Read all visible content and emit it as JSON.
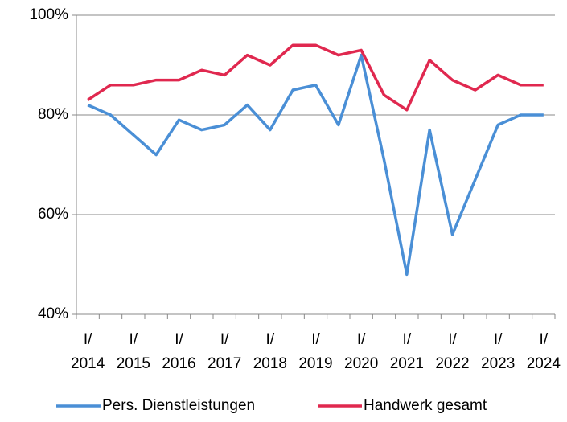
{
  "chart_data": {
    "type": "line",
    "categories": [
      "I/ 2014",
      null,
      "I/ 2015",
      null,
      "I/ 2016",
      null,
      "I/ 2017",
      null,
      "I/ 2018",
      null,
      "I/ 2019",
      null,
      "I/ 2020",
      null,
      "I/ 2021",
      null,
      "I/ 2022",
      null,
      "I/ 2023",
      null,
      "I/ 2024"
    ],
    "series": [
      {
        "name": "Pers. Dienstleistungen",
        "color": "#4a8fd6",
        "values": [
          82,
          80,
          76,
          72,
          79,
          77,
          78,
          82,
          77,
          85,
          86,
          78,
          92,
          71,
          48,
          77,
          56,
          67,
          78,
          80,
          80
        ]
      },
      {
        "name": "Handwerk gesamt",
        "color": "#e0284f",
        "values": [
          83,
          86,
          86,
          87,
          87,
          89,
          88,
          92,
          90,
          94,
          94,
          92,
          93,
          84,
          81,
          91,
          87,
          85,
          88,
          86,
          86
        ]
      }
    ],
    "ylim": [
      40,
      100
    ],
    "yticks": [
      {
        "value": 40,
        "label": "40%"
      },
      {
        "value": 60,
        "label": "60%"
      },
      {
        "value": 80,
        "label": "80%"
      },
      {
        "value": 100,
        "label": "100%"
      }
    ],
    "grid": true,
    "legend": "bottom"
  }
}
